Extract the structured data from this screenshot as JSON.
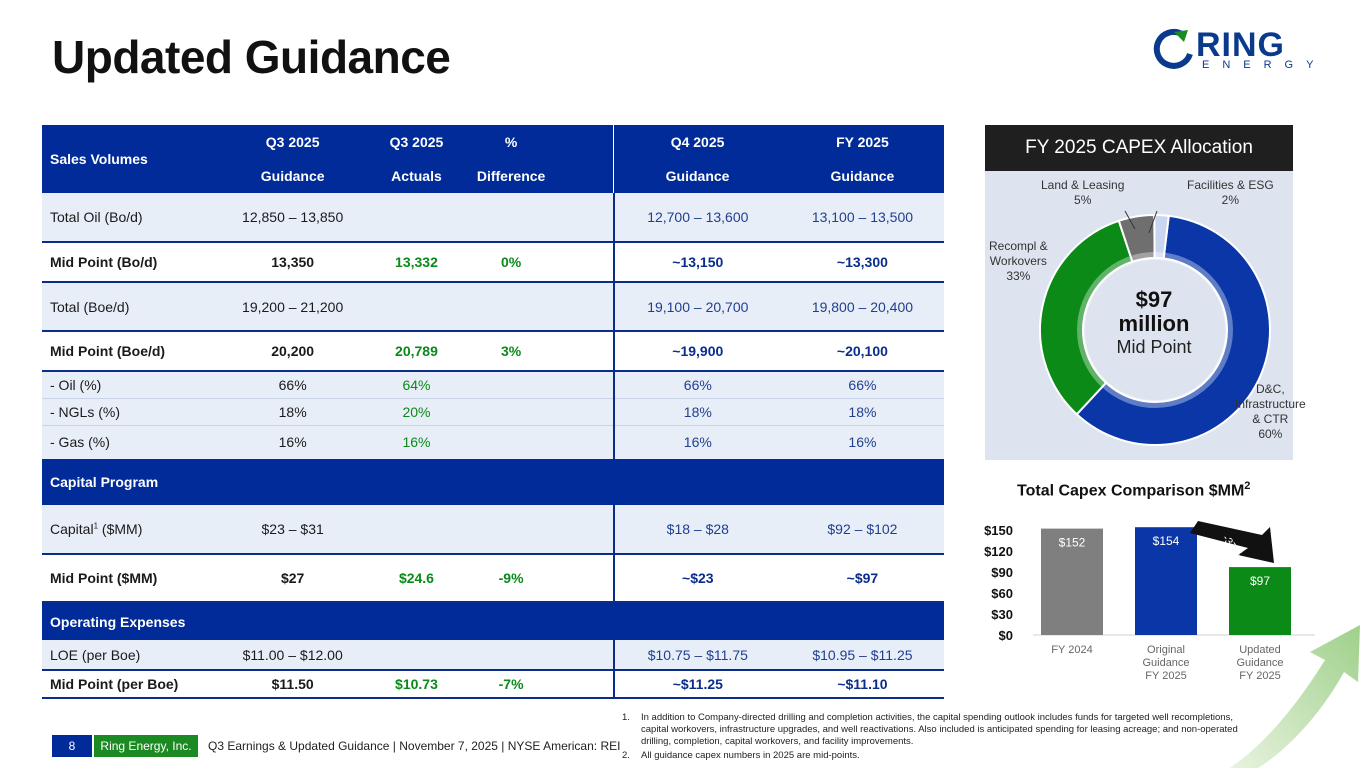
{
  "title": "Updated Guidance",
  "logo": {
    "word": "RING",
    "sub": "ENERGY"
  },
  "table": {
    "header": {
      "sales_volumes": "Sales Volumes",
      "q3_guidance_top": "Q3 2025",
      "q3_guidance_bot": "Guidance",
      "q3_actuals_top": "Q3 2025",
      "q3_actuals_bot": "Actuals",
      "pct_top": "%",
      "pct_bot": "Difference",
      "q4_top": "Q4 2025",
      "q4_bot": "Guidance",
      "fy_top": "FY 2025",
      "fy_bot": "Guidance"
    },
    "rows": [
      {
        "label": "Total Oil (Bo/d)",
        "q3g": "12,850 – 13,850",
        "q3a": "",
        "diff": "",
        "q4": "12,700 – 13,600",
        "fy": "13,100 – 13,500"
      },
      {
        "label": "Mid Point (Bo/d)",
        "q3g": "13,350",
        "q3a": "13,332",
        "diff": "0%",
        "q4": "~13,150",
        "fy": "~13,300"
      },
      {
        "label": "Total (Boe/d)",
        "q3g": "19,200 – 21,200",
        "q3a": "",
        "diff": "",
        "q4": "19,100 – 20,700",
        "fy": "19,800 – 20,400"
      },
      {
        "label": "Mid Point (Boe/d)",
        "q3g": "20,200",
        "q3a": "20,789",
        "diff": "3%",
        "q4": "~19,900",
        "fy": "~20,100"
      },
      {
        "label": "- Oil (%)",
        "q3g": "66%",
        "q3a": "64%",
        "diff": "",
        "q4": "66%",
        "fy": "66%"
      },
      {
        "label": "- NGLs (%)",
        "q3g": "18%",
        "q3a": "20%",
        "diff": "",
        "q4": "18%",
        "fy": "18%"
      },
      {
        "label": "- Gas (%)",
        "q3g": "16%",
        "q3a": "16%",
        "diff": "",
        "q4": "16%",
        "fy": "16%"
      }
    ],
    "capital_section": "Capital Program",
    "capital_rows": [
      {
        "label": "Capital",
        "label_sup": "1",
        "label_suffix": " ($MM)",
        "q3g": "$23 – $31",
        "q3a": "",
        "diff": "",
        "q4": "$18 – $28",
        "fy": "$92 – $102"
      },
      {
        "label": "Mid Point ($MM)",
        "q3g": "$27",
        "q3a": "$24.6",
        "diff": "-9%",
        "q4": "~$23",
        "fy": "~$97"
      }
    ],
    "opex_section": "Operating Expenses",
    "opex_rows": [
      {
        "label": "LOE (per Boe)",
        "q3g": "$11.00 – $12.00",
        "q3a": "",
        "diff": "",
        "q4": "$10.75 – $11.75",
        "fy": "$10.95 – $11.25"
      },
      {
        "label": "Mid Point (per Boe)",
        "q3g": "$11.50",
        "q3a": "$10.73",
        "diff": "-7%",
        "q4": "~$11.25",
        "fy": "~$11.10"
      }
    ]
  },
  "donut": {
    "title": "FY 2025 CAPEX Allocation",
    "center_big_1": "$97",
    "center_big_2": "million",
    "center_sub": "Mid Point",
    "labels": {
      "dc": [
        "D&C,",
        "Infrastructure",
        "& CTR",
        "60%"
      ],
      "recompl": [
        "Recompl &",
        "Workovers",
        "33%"
      ],
      "land": [
        "Land & Leasing",
        "5%"
      ],
      "fac": [
        "Facilities & ESG",
        "2%"
      ]
    }
  },
  "chart_data": [
    {
      "type": "pie",
      "title": "FY 2025 CAPEX Allocation",
      "categories": [
        "D&C, Infrastructure & CTR",
        "Recompl & Workovers",
        "Land & Leasing",
        "Facilities & ESG"
      ],
      "values": [
        60,
        33,
        5,
        2
      ],
      "colors": [
        "#0a36a8",
        "#0c8a18",
        "#6f6f6f",
        "#c9d6f0"
      ]
    },
    {
      "type": "bar",
      "title": "Total Capex Comparison $MM",
      "title_sup": "2",
      "categories": [
        "FY 2024",
        "Original Guidance FY 2025",
        "Updated Guidance FY 2025"
      ],
      "category_lines": [
        [
          "FY 2024"
        ],
        [
          "Original",
          "Guidance",
          "FY 2025"
        ],
        [
          "Updated",
          "Guidance",
          "FY 2025"
        ]
      ],
      "values": [
        152,
        154,
        97
      ],
      "value_labels": [
        "$152",
        "$154",
        "$97"
      ],
      "colors": [
        "#7f7f7f",
        "#0a36a8",
        "#0c8a18"
      ],
      "yticks": [
        "$0",
        "$30",
        "$60",
        "$90",
        "$120",
        "$150"
      ],
      "ylim": [
        0,
        150
      ],
      "annotation": "-37%"
    }
  ],
  "footer": {
    "page": "8",
    "company": "Ring Energy, Inc.",
    "text": "Q3 Earnings & Updated Guidance | November 7, 2025 | NYSE American: REI",
    "notes": [
      {
        "n": "1.",
        "t": "In addition to Company-directed drilling and completion activities, the capital spending outlook includes funds for targeted well recompletions, capital workovers, infrastructure upgrades, and well reactivations. Also included is anticipated spending for leasing acreage; and non-operated drilling, completion, capital workovers, and facility improvements."
      },
      {
        "n": "2.",
        "t": "All guidance capex numbers in 2025 are mid-points."
      }
    ]
  }
}
